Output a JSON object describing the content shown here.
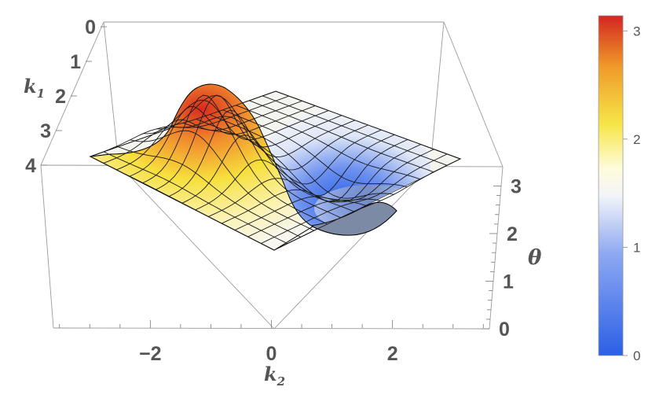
{
  "chart_data": {
    "type": "surface3d",
    "title": "",
    "axes": {
      "k1": {
        "label": "k",
        "subscript": "1",
        "ticks": [
          "0",
          "1",
          "2",
          "3",
          "4"
        ],
        "range": [
          0,
          4
        ]
      },
      "k2": {
        "label": "k",
        "subscript": "2",
        "ticks": [
          "−2",
          "0",
          "2"
        ],
        "range": [
          -3.6,
          3.6
        ]
      },
      "theta": {
        "label": "θ",
        "ticks": [
          "0",
          "1",
          "2",
          "3"
        ],
        "range": [
          0,
          3.14
        ]
      }
    },
    "surface": {
      "description_of_values": "theta(k1,k2) rises to a peak of about 3.1 (red) near k1≈1.5, k2≈-1.5 and dips to about 0 (blue) near k1≈1.5, k2≈1.5; flat plateau near 1.57 elsewhere",
      "max": 3.1,
      "min": 0.0,
      "baseline": 1.57
    },
    "colorbar": {
      "ticks": [
        "0",
        "1",
        "2",
        "3"
      ],
      "range": [
        0,
        3.14
      ],
      "colors": [
        "#2a5fe6",
        "#7a9cf0",
        "#eef2f7",
        "#fffbd0",
        "#f4e440",
        "#f29b26",
        "#d62b22"
      ]
    },
    "grid": false,
    "legend": "colorbar-right"
  }
}
